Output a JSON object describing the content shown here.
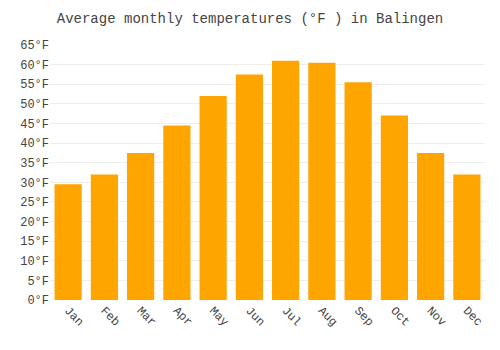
{
  "chart_data": {
    "type": "bar",
    "title": "Average monthly temperatures (°F ) in Balingen",
    "categories": [
      "Jan",
      "Feb",
      "Mar",
      "Apr",
      "May",
      "Jun",
      "Jul",
      "Aug",
      "Sep",
      "Oct",
      "Nov",
      "Dec"
    ],
    "values": [
      29.5,
      32.0,
      37.5,
      44.5,
      52.0,
      57.5,
      61.0,
      60.5,
      55.5,
      47.0,
      37.5,
      32.0
    ],
    "color": "#FFA500",
    "ylim": [
      0,
      65
    ],
    "yticks": [
      {
        "value": 0,
        "label": "0°F"
      },
      {
        "value": 5,
        "label": "5°F"
      },
      {
        "value": 10,
        "label": "10°F"
      },
      {
        "value": 15,
        "label": "15°F"
      },
      {
        "value": 20,
        "label": "20°F"
      },
      {
        "value": 25,
        "label": "25°F"
      },
      {
        "value": 30,
        "label": "30°F"
      },
      {
        "value": 35,
        "label": "35°F"
      },
      {
        "value": 40,
        "label": "40°F"
      },
      {
        "value": 45,
        "label": "45°F"
      },
      {
        "value": 50,
        "label": "50°F"
      },
      {
        "value": 55,
        "label": "55°F"
      },
      {
        "value": 60,
        "label": "60°F"
      },
      {
        "value": 65,
        "label": "65°F"
      }
    ],
    "grid": true
  }
}
